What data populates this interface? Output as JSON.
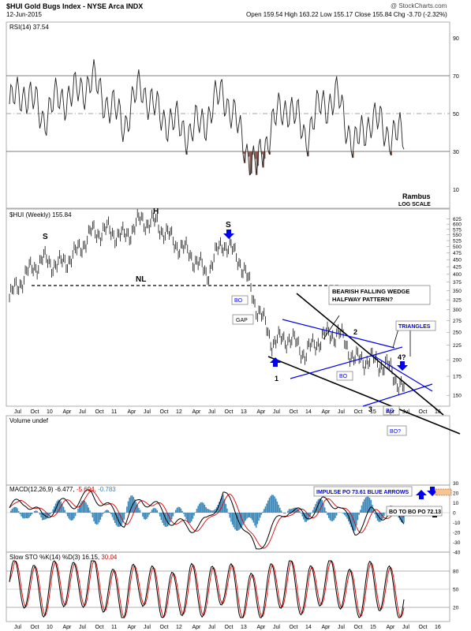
{
  "header": {
    "title": "$HUI Gold Bugs Index - NYSE Arca INDX",
    "date": "12-Jun-2015",
    "quote": "Open 159.54  High 163.22  Low 155.17  Close 155.84  Chg -3.70 (-2.32%)",
    "watermark": "@ StockCharts.com"
  },
  "rsi": {
    "label": "RSI(14) 37.54",
    "ticks": [
      90,
      70,
      50,
      30,
      10
    ],
    "overbought": 70,
    "oversold": 30,
    "credit": "Rambus",
    "scale_note": "LOG SCALE"
  },
  "price": {
    "label": "$HUI (Weekly) 155.84",
    "yticks": [
      625,
      600,
      575,
      550,
      525,
      500,
      475,
      450,
      425,
      400,
      375,
      350,
      325,
      300,
      275,
      250,
      225,
      200,
      175,
      150
    ],
    "neckline": 370,
    "annotations": {
      "s_left": "S",
      "head": "H",
      "s_right": "S",
      "nl": "NL",
      "bo1": "BO",
      "gap": "GAP",
      "wedge": "BEARISH FALLING WEDGE\nHALFWAY PATTERN?",
      "pt1": "1",
      "pt2": "2",
      "pt3": "3",
      "pt4": "4?",
      "triangles": "TRIANGLES",
      "bo2": "BO",
      "bo3": "BO",
      "bo4": "BO?"
    }
  },
  "xaxis": {
    "labels": [
      "Jul",
      "Oct",
      "10",
      "Apr",
      "Jul",
      "Oct",
      "11",
      "Apr",
      "Jul",
      "Oct",
      "12",
      "Apr",
      "Jul",
      "Oct",
      "13",
      "Apr",
      "Jul",
      "Oct",
      "14",
      "Apr",
      "Jul",
      "Oct",
      "15",
      "Apr",
      "Jul",
      "Oct",
      "16"
    ]
  },
  "volume": {
    "label": "Volume undef"
  },
  "macd": {
    "label_prefix": "MACD(12,26,9) -6.477,",
    "label_signal": " -5.694,",
    "label_hist": " -0.783",
    "ticks": [
      30,
      20,
      10,
      0,
      -10,
      -20,
      -30,
      -40
    ],
    "impulse": "IMPULSE PO 73.61 BLUE ARROWS",
    "bo_to_bo": "BO TO BO PO 72.13"
  },
  "sto": {
    "label_prefix": "Slow STO %K(14) %D(3) 16.15,",
    "label_d": " 30.04",
    "ticks": [
      80,
      50,
      20
    ]
  },
  "colors": {
    "blue": "#0000ee",
    "rsi_fill": "#8b5a50",
    "macd_signal": "#dd0000",
    "hist": "#3a87b8",
    "grid": "#b8b8b8"
  },
  "chart_data": {
    "type": "line",
    "title": "$HUI Gold Bugs Index - NYSE Arca INDX",
    "x": [
      "2009-07",
      "2009-10",
      "2010-01",
      "2010-04",
      "2010-07",
      "2010-10",
      "2011-01",
      "2011-04",
      "2011-07",
      "2011-10",
      "2012-01",
      "2012-04",
      "2012-07",
      "2012-10",
      "2013-01",
      "2013-04",
      "2013-07",
      "2013-10",
      "2014-01",
      "2014-04",
      "2014-07",
      "2014-10",
      "2015-01",
      "2015-04",
      "2015-06"
    ],
    "series": [
      {
        "name": "$HUI (Weekly)",
        "values": [
          330,
          400,
          450,
          430,
          470,
          560,
          570,
          540,
          620,
          600,
          520,
          470,
          400,
          520,
          450,
          310,
          230,
          240,
          210,
          240,
          250,
          200,
          200,
          190,
          156
        ]
      },
      {
        "name": "RSI(14)",
        "values": [
          55,
          62,
          48,
          58,
          60,
          68,
          55,
          45,
          65,
          50,
          45,
          40,
          48,
          62,
          40,
          20,
          45,
          55,
          38,
          55,
          58,
          32,
          48,
          40,
          37.54
        ]
      },
      {
        "name": "MACD(12,26,9)",
        "values": [
          5,
          12,
          -5,
          8,
          10,
          20,
          5,
          -10,
          15,
          5,
          -10,
          -15,
          -10,
          20,
          -5,
          -40,
          -15,
          5,
          -5,
          10,
          10,
          -20,
          0,
          -2,
          -6.477
        ]
      },
      {
        "name": "Slow STO %K(14)",
        "values": [
          80,
          70,
          30,
          85,
          60,
          90,
          40,
          20,
          85,
          30,
          20,
          60,
          25,
          90,
          20,
          15,
          60,
          80,
          30,
          85,
          75,
          15,
          70,
          50,
          16.15
        ]
      }
    ],
    "ylim": [
      140,
      640
    ],
    "log_scale": true,
    "grid": true
  }
}
